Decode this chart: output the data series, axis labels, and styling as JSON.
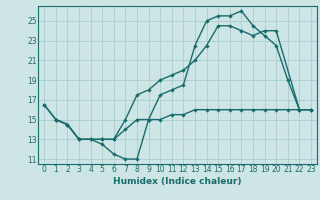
{
  "title": "",
  "xlabel": "Humidex (Indice chaleur)",
  "ylabel": "",
  "bg_color": "#cde5e5",
  "grid_color": "#aacccc",
  "line_color": "#1a6b6b",
  "xlim": [
    -0.5,
    23.5
  ],
  "ylim": [
    10.5,
    26.5
  ],
  "xticks": [
    0,
    1,
    2,
    3,
    4,
    5,
    6,
    7,
    8,
    9,
    10,
    11,
    12,
    13,
    14,
    15,
    16,
    17,
    18,
    19,
    20,
    21,
    22,
    23
  ],
  "yticks": [
    11,
    13,
    15,
    17,
    19,
    21,
    23,
    25
  ],
  "line1_x": [
    0,
    1,
    2,
    3,
    4,
    5,
    6,
    7,
    8,
    9,
    10,
    11,
    12,
    13,
    14,
    15,
    16,
    17,
    18,
    19,
    20,
    21,
    22,
    23
  ],
  "line1_y": [
    16.5,
    15.0,
    14.5,
    13.0,
    13.0,
    12.5,
    11.5,
    11.0,
    11.0,
    15.0,
    17.5,
    18.0,
    18.5,
    22.5,
    25.0,
    25.5,
    25.5,
    26.0,
    24.5,
    23.5,
    22.5,
    19.0,
    16.0,
    16.0
  ],
  "line2_x": [
    1,
    2,
    3,
    5,
    6,
    7,
    8,
    9,
    10,
    11,
    12,
    13,
    14,
    15,
    16,
    17,
    18,
    19,
    20,
    22,
    23
  ],
  "line2_y": [
    15.0,
    14.5,
    13.0,
    13.0,
    13.0,
    15.0,
    17.5,
    18.0,
    19.0,
    19.5,
    20.0,
    21.0,
    22.5,
    24.5,
    24.5,
    24.0,
    23.5,
    24.0,
    24.0,
    16.0,
    16.0
  ],
  "line3_x": [
    0,
    1,
    2,
    3,
    4,
    5,
    6,
    7,
    8,
    9,
    10,
    11,
    12,
    13,
    14,
    15,
    16,
    17,
    18,
    19,
    20,
    21,
    22,
    23
  ],
  "line3_y": [
    16.5,
    15.0,
    14.5,
    13.0,
    13.0,
    13.0,
    13.0,
    14.0,
    15.0,
    15.0,
    15.0,
    15.5,
    15.5,
    16.0,
    16.0,
    16.0,
    16.0,
    16.0,
    16.0,
    16.0,
    16.0,
    16.0,
    16.0,
    16.0
  ]
}
